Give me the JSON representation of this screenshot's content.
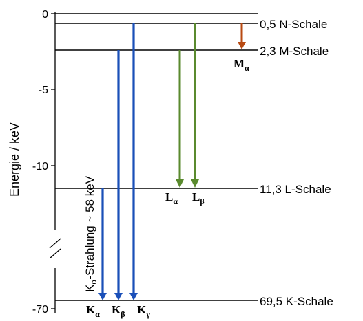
{
  "axis": {
    "label": "Energie / keV",
    "ticks": [
      "0",
      "-5",
      "-10",
      "-70"
    ]
  },
  "levels": [
    {
      "value": "0,5",
      "shell": "N-Schale",
      "text": "0,5 N-Schale"
    },
    {
      "value": "2,3",
      "shell": "M-Schale",
      "text": "2,3 M-Schale"
    },
    {
      "value": "11,3",
      "shell": "L-Schale",
      "text": "11,3 L-Schale"
    },
    {
      "value": "69,5",
      "shell": "K-Schale",
      "text": "69,5 K-Schale"
    }
  ],
  "transitions": [
    {
      "symbol": "K",
      "subscript": "α",
      "from": "L-Schale",
      "to": "K-Schale",
      "color": "#1a4fb8"
    },
    {
      "symbol": "K",
      "subscript": "β",
      "from": "M-Schale",
      "to": "K-Schale",
      "color": "#1a4fb8"
    },
    {
      "symbol": "K",
      "subscript": "γ",
      "from": "N-Schale",
      "to": "K-Schale",
      "color": "#1a4fb8"
    },
    {
      "symbol": "L",
      "subscript": "α",
      "from": "M-Schale",
      "to": "L-Schale",
      "color": "#5a8a2e"
    },
    {
      "symbol": "L",
      "subscript": "β",
      "from": "N-Schale",
      "to": "L-Schale",
      "color": "#5a8a2e"
    },
    {
      "symbol": "M",
      "subscript": "α",
      "from": "N-Schale",
      "to": "M-Schale",
      "color": "#b84a12"
    }
  ],
  "annotation": {
    "prefix": "K",
    "subscript": "α",
    "suffix": "-Strahlung ~ 58 keV"
  },
  "colors": {
    "k_series": "#1a4fb8",
    "l_series": "#5a8a2e",
    "m_series": "#b84a12",
    "lines": "#000000"
  }
}
